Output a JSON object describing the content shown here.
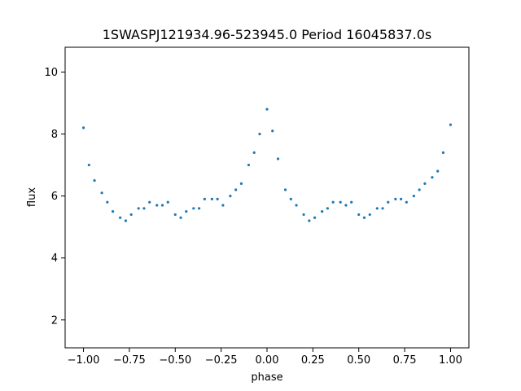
{
  "chart_data": {
    "type": "scatter",
    "title": "1SWASPJ121934.96-523945.0 Period 16045837.0s",
    "xlabel": "phase",
    "ylabel": "flux",
    "xlim": [
      -1.1,
      1.1
    ],
    "ylim": [
      1.1,
      10.8
    ],
    "x_ticks": [
      -1.0,
      -0.75,
      -0.5,
      -0.25,
      0.0,
      0.25,
      0.5,
      0.75,
      1.0
    ],
    "x_tick_labels": [
      "−1.00",
      "−0.75",
      "−0.50",
      "−0.25",
      "0.00",
      "0.25",
      "0.50",
      "0.75",
      "1.00"
    ],
    "y_ticks": [
      2,
      4,
      6,
      8,
      10
    ],
    "y_tick_labels": [
      "2",
      "4",
      "6",
      "8",
      "10"
    ],
    "grid": false,
    "marker_color": "#1f77b4",
    "series": [
      {
        "x": [
          -1.0,
          -0.97,
          -0.94,
          -0.9,
          -0.87,
          -0.84,
          -0.8,
          -0.77,
          -0.74,
          -0.7,
          -0.67,
          -0.64,
          -0.6,
          -0.57,
          -0.54,
          -0.5,
          -0.47,
          -0.44,
          -0.4,
          -0.37,
          -0.34,
          -0.3,
          -0.27,
          -0.24,
          -0.2,
          -0.17,
          -0.14,
          -0.1,
          -0.07,
          -0.04,
          0.0,
          0.03,
          0.06,
          0.1,
          0.13,
          0.16,
          0.2,
          0.23,
          0.26,
          0.3,
          0.33,
          0.36,
          0.4,
          0.43,
          0.46,
          0.5,
          0.53,
          0.56,
          0.6,
          0.63,
          0.66,
          0.7,
          0.73,
          0.76,
          0.8,
          0.83,
          0.86,
          0.9,
          0.93,
          0.96,
          1.0
        ],
        "y": [
          8.2,
          7.0,
          6.5,
          6.1,
          5.8,
          5.5,
          5.3,
          5.2,
          5.4,
          5.6,
          5.6,
          5.8,
          5.7,
          5.7,
          5.8,
          5.4,
          5.3,
          5.5,
          5.6,
          5.6,
          5.9,
          5.9,
          5.9,
          5.7,
          6.0,
          6.2,
          6.4,
          7.0,
          7.4,
          8.0,
          8.8,
          8.1,
          7.2,
          6.2,
          5.9,
          5.7,
          5.4,
          5.2,
          5.3,
          5.5,
          5.6,
          5.8,
          5.8,
          5.7,
          5.8,
          5.4,
          5.3,
          5.4,
          5.6,
          5.6,
          5.8,
          5.9,
          5.9,
          5.8,
          6.0,
          6.2,
          6.4,
          6.6,
          6.8,
          7.4,
          8.3
        ]
      }
    ]
  }
}
